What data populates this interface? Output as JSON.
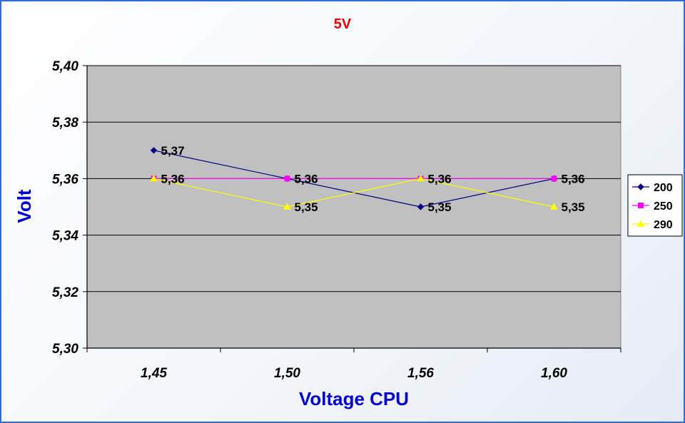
{
  "chart_data": {
    "type": "line",
    "title": "5V",
    "xlabel": "Voltage CPU",
    "ylabel": "Volt",
    "categories": [
      "1,45",
      "1,50",
      "1,56",
      "1,60"
    ],
    "ylim": [
      5.3,
      5.4
    ],
    "yticks": [
      "5,30",
      "5,32",
      "5,34",
      "5,36",
      "5,38",
      "5,40"
    ],
    "grid": true,
    "legend_position": "right",
    "series": [
      {
        "name": "200",
        "values": [
          5.37,
          5.36,
          5.35,
          5.36
        ],
        "labels": [
          "5,37",
          "5,36",
          "5,35",
          "5,36"
        ],
        "color": "#000080",
        "marker": "diamond"
      },
      {
        "name": "250",
        "values": [
          5.36,
          5.36,
          5.36,
          5.36
        ],
        "labels": [
          "5,36",
          "5,36",
          "5,36",
          "5,36"
        ],
        "color": "#ff00ff",
        "marker": "square"
      },
      {
        "name": "290",
        "values": [
          5.36,
          5.35,
          5.36,
          5.35
        ],
        "labels": [
          "5,36",
          "5,35",
          "5,36",
          "5,35"
        ],
        "color": "#ffff00",
        "marker": "triangle"
      }
    ]
  }
}
